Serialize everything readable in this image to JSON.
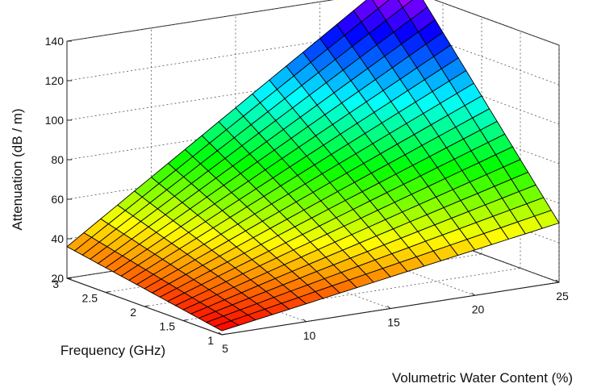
{
  "chart_data": {
    "type": "surface",
    "title": "",
    "x": {
      "label": "Volumetric Water Content (%)",
      "range": [
        5,
        25
      ],
      "ticks": [
        5,
        10,
        15,
        20,
        25
      ]
    },
    "y": {
      "label": "Frequency (GHz)",
      "range": [
        1,
        3
      ],
      "ticks": [
        1,
        1.5,
        2,
        2.5,
        3
      ]
    },
    "z": {
      "label": "Attenuation (dB / m)",
      "range": [
        20,
        140
      ],
      "ticks": [
        20,
        40,
        60,
        80,
        100,
        120,
        140
      ]
    },
    "grid": true,
    "colormap": "hsv",
    "mesh": {
      "x_steps": 20,
      "y_steps": 20
    },
    "corner_values": [
      {
        "water_content": 5,
        "frequency": 1,
        "attenuation": 22
      },
      {
        "water_content": 5,
        "frequency": 3,
        "attenuation": 36
      },
      {
        "water_content": 25,
        "frequency": 1,
        "attenuation": 50
      },
      {
        "water_content": 25,
        "frequency": 3,
        "attenuation": 150
      }
    ]
  }
}
